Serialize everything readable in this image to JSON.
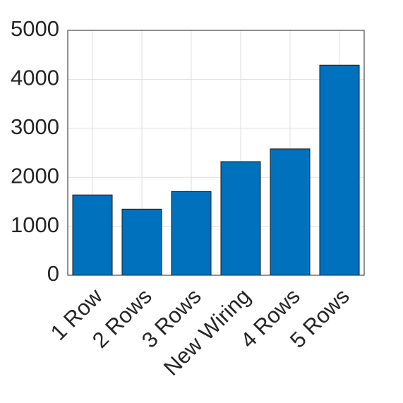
{
  "chart_data": {
    "type": "bar",
    "categories": [
      "1 Row",
      "2 Rows",
      "3 Rows",
      "New Wiring",
      "4 Rows",
      "5 Rows"
    ],
    "values": [
      1640,
      1350,
      1710,
      2320,
      2580,
      4290
    ],
    "color": "#0072bd",
    "ylim": [
      0,
      5000
    ],
    "yticks": [
      0,
      1000,
      2000,
      3000,
      4000,
      5000
    ],
    "grid": true
  }
}
